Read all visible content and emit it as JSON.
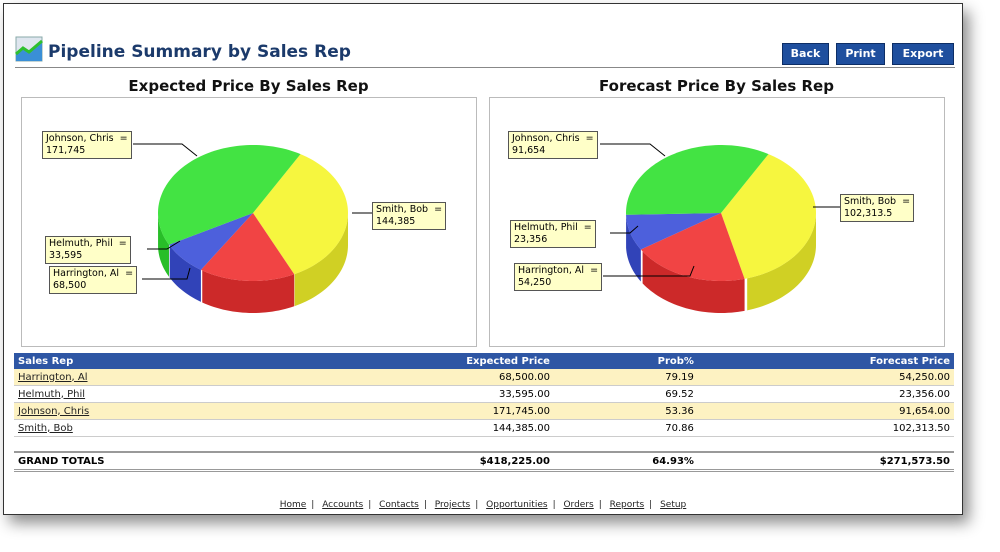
{
  "header": {
    "title": "Pipeline Summary by Sales Rep",
    "buttons": [
      "Back",
      "Print",
      "Export"
    ]
  },
  "charts": [
    {
      "title": "Expected Price By Sales Rep",
      "callouts": [
        "Johnson, Chris  =\n171,745",
        "Smith, Bob  =\n144,385",
        "Helmuth, Phil  =\n33,595",
        "Harrington, Al  =\n68,500"
      ]
    },
    {
      "title": "Forecast Price By Sales Rep",
      "callouts": [
        "Johnson, Chris  =\n91,654",
        "Smith, Bob  =\n102,313.5",
        "Helmuth, Phil  =\n23,356",
        "Harrington, Al  =\n54,250"
      ]
    }
  ],
  "chart_data": [
    {
      "type": "pie",
      "title": "Expected Price By Sales Rep",
      "categories": [
        "Smith, Bob",
        "Harrington, Al",
        "Helmuth, Phil",
        "Johnson, Chris"
      ],
      "values": [
        144385,
        68500,
        33595,
        171745
      ],
      "colors": [
        "#f5f52a",
        "#f03030",
        "#3a4fd8",
        "#2fe02f"
      ]
    },
    {
      "type": "pie",
      "title": "Forecast Price By Sales Rep",
      "categories": [
        "Smith, Bob",
        "Harrington, Al",
        "Helmuth, Phil",
        "Johnson, Chris"
      ],
      "values": [
        102313.5,
        54250,
        23356,
        91654
      ],
      "colors": [
        "#f5f52a",
        "#f03030",
        "#3a4fd8",
        "#2fe02f"
      ]
    }
  ],
  "table": {
    "headers": [
      "Sales Rep",
      "Expected Price",
      "Prob%",
      "Forecast Price"
    ],
    "rows": [
      [
        "Harrington, Al",
        "68,500.00",
        "79.19",
        "54,250.00"
      ],
      [
        "Helmuth, Phil",
        "33,595.00",
        "69.52",
        "23,356.00"
      ],
      [
        "Johnson, Chris",
        "171,745.00",
        "53.36",
        "91,654.00"
      ],
      [
        "Smith, Bob",
        "144,385.00",
        "70.86",
        "102,313.50"
      ]
    ],
    "totals": [
      "GRAND TOTALS",
      "$418,225.00",
      "64.93%",
      "$271,573.50"
    ]
  },
  "footer": [
    "Home",
    "Accounts",
    "Contacts",
    "Projects",
    "Opportunities",
    "Orders",
    "Reports",
    "Setup"
  ]
}
